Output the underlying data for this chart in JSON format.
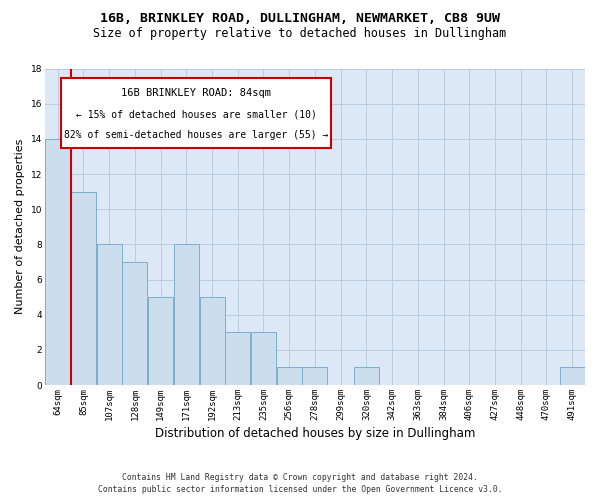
{
  "title1": "16B, BRINKLEY ROAD, DULLINGHAM, NEWMARKET, CB8 9UW",
  "title2": "Size of property relative to detached houses in Dullingham",
  "xlabel": "Distribution of detached houses by size in Dullingham",
  "ylabel": "Number of detached properties",
  "categories": [
    "64sqm",
    "85sqm",
    "107sqm",
    "128sqm",
    "149sqm",
    "171sqm",
    "192sqm",
    "213sqm",
    "235sqm",
    "256sqm",
    "278sqm",
    "299sqm",
    "320sqm",
    "342sqm",
    "363sqm",
    "384sqm",
    "406sqm",
    "427sqm",
    "448sqm",
    "470sqm",
    "491sqm"
  ],
  "values": [
    14,
    11,
    8,
    7,
    5,
    8,
    5,
    3,
    3,
    1,
    1,
    0,
    1,
    0,
    0,
    0,
    0,
    0,
    0,
    0,
    1
  ],
  "bar_color": "#ccdded",
  "bar_edge_color": "#7aafd0",
  "vline_color": "#cc0000",
  "annotation_title": "16B BRINKLEY ROAD: 84sqm",
  "annotation_line1": "← 15% of detached houses are smaller (10)",
  "annotation_line2": "82% of semi-detached houses are larger (55) →",
  "annotation_box_color": "#ffffff",
  "annotation_box_edge": "#cc0000",
  "ylim": [
    0,
    18
  ],
  "yticks": [
    0,
    2,
    4,
    6,
    8,
    10,
    12,
    14,
    16,
    18
  ],
  "footer1": "Contains HM Land Registry data © Crown copyright and database right 2024.",
  "footer2": "Contains public sector information licensed under the Open Government Licence v3.0.",
  "bg_color": "#ffffff",
  "ax_bg_color": "#dce8f5",
  "grid_color": "#b8cede",
  "title1_fontsize": 9.5,
  "title2_fontsize": 8.5,
  "xlabel_fontsize": 8.5,
  "ylabel_fontsize": 8,
  "tick_fontsize": 6.5,
  "footer_fontsize": 5.8,
  "ann_title_fontsize": 7.5,
  "ann_line_fontsize": 7
}
